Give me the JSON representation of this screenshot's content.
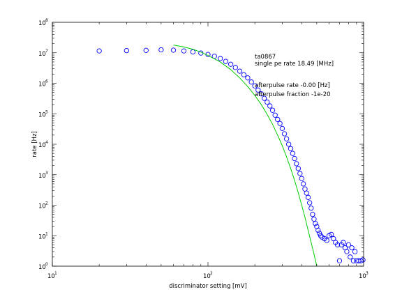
{
  "chart_data": {
    "type": "scatter",
    "title": "",
    "xlabel": "discriminator setting [mV]",
    "ylabel": "rate [Hz]",
    "xscale": "log",
    "yscale": "log",
    "xlim": [
      10,
      1000
    ],
    "ylim": [
      1,
      100000000
    ],
    "grid": false,
    "x_ticks": [
      {
        "value": 10,
        "base": "10",
        "exp": "1"
      },
      {
        "value": 100,
        "base": "10",
        "exp": "2"
      },
      {
        "value": 1000,
        "base": "10",
        "exp": "3"
      }
    ],
    "y_ticks": [
      {
        "value": 1,
        "base": "10",
        "exp": "0"
      },
      {
        "value": 10,
        "base": "10",
        "exp": "1"
      },
      {
        "value": 100,
        "base": "10",
        "exp": "2"
      },
      {
        "value": 1000,
        "base": "10",
        "exp": "3"
      },
      {
        "value": 10000,
        "base": "10",
        "exp": "4"
      },
      {
        "value": 100000,
        "base": "10",
        "exp": "5"
      },
      {
        "value": 1000000,
        "base": "10",
        "exp": "6"
      },
      {
        "value": 10000000,
        "base": "10",
        "exp": "7"
      },
      {
        "value": 100000000,
        "base": "10",
        "exp": "8"
      }
    ],
    "annotations": [
      "ta0867",
      "single pe rate 18.49 [MHz]",
      "afterpulse rate -0.00 [Hz]",
      "afterpulse fraction -1e-20"
    ],
    "series": [
      {
        "marker": "circle",
        "color": "#0000ff",
        "points": [
          [
            20,
            11500000
          ],
          [
            30,
            11800000
          ],
          [
            40,
            12000000
          ],
          [
            50,
            12500000
          ],
          [
            60,
            12200000
          ],
          [
            70,
            11500000
          ],
          [
            80,
            10700000
          ],
          [
            90,
            9800000
          ],
          [
            100,
            8800000
          ],
          [
            110,
            7700000
          ],
          [
            120,
            6500000
          ],
          [
            130,
            5200000
          ],
          [
            140,
            4200000
          ],
          [
            150,
            3300000
          ],
          [
            160,
            2500000
          ],
          [
            170,
            1900000
          ],
          [
            180,
            1500000
          ],
          [
            190,
            1100000
          ],
          [
            200,
            820000
          ],
          [
            210,
            600000
          ],
          [
            220,
            450000
          ],
          [
            230,
            320000
          ],
          [
            240,
            240000
          ],
          [
            250,
            180000
          ],
          [
            260,
            130000
          ],
          [
            270,
            90000
          ],
          [
            280,
            65000
          ],
          [
            290,
            48000
          ],
          [
            300,
            33000
          ],
          [
            310,
            22000
          ],
          [
            320,
            15000
          ],
          [
            330,
            10000
          ],
          [
            340,
            7200
          ],
          [
            350,
            5000
          ],
          [
            360,
            3400
          ],
          [
            370,
            2300
          ],
          [
            380,
            1600
          ],
          [
            390,
            1100
          ],
          [
            400,
            750
          ],
          [
            410,
            500
          ],
          [
            420,
            340
          ],
          [
            430,
            250
          ],
          [
            440,
            180
          ],
          [
            450,
            120
          ],
          [
            460,
            80
          ],
          [
            470,
            50
          ],
          [
            480,
            35
          ],
          [
            490,
            25
          ],
          [
            500,
            20
          ],
          [
            510,
            15
          ],
          [
            520,
            12
          ],
          [
            530,
            10
          ],
          [
            540,
            9
          ],
          [
            560,
            8
          ],
          [
            580,
            7
          ],
          [
            600,
            10
          ],
          [
            620,
            11
          ],
          [
            640,
            8
          ],
          [
            660,
            6
          ],
          [
            680,
            5
          ],
          [
            700,
            1.5
          ],
          [
            720,
            5
          ],
          [
            740,
            6
          ],
          [
            760,
            4
          ],
          [
            780,
            3
          ],
          [
            800,
            5
          ],
          [
            820,
            2
          ],
          [
            840,
            4
          ],
          [
            860,
            1.5
          ],
          [
            880,
            3
          ],
          [
            900,
            1.5
          ],
          [
            930,
            1.5
          ],
          [
            960,
            1.5
          ],
          [
            990,
            1.6
          ]
        ]
      },
      {
        "marker": "line",
        "color": "#00cc00",
        "points": [
          [
            60,
            18000000
          ],
          [
            70,
            15500000
          ],
          [
            80,
            13000000
          ],
          [
            90,
            10500000
          ],
          [
            100,
            8200000
          ],
          [
            120,
            5000000
          ],
          [
            140,
            2800000
          ],
          [
            160,
            1500000
          ],
          [
            180,
            780000
          ],
          [
            200,
            400000
          ],
          [
            220,
            200000
          ],
          [
            240,
            95000
          ],
          [
            260,
            45000
          ],
          [
            280,
            20000
          ],
          [
            300,
            9000
          ],
          [
            320,
            3800
          ],
          [
            340,
            1600
          ],
          [
            360,
            650
          ],
          [
            380,
            260
          ],
          [
            400,
            100
          ],
          [
            420,
            40
          ],
          [
            440,
            15
          ],
          [
            460,
            6
          ],
          [
            480,
            2.5
          ],
          [
            500,
            1
          ]
        ]
      }
    ]
  }
}
